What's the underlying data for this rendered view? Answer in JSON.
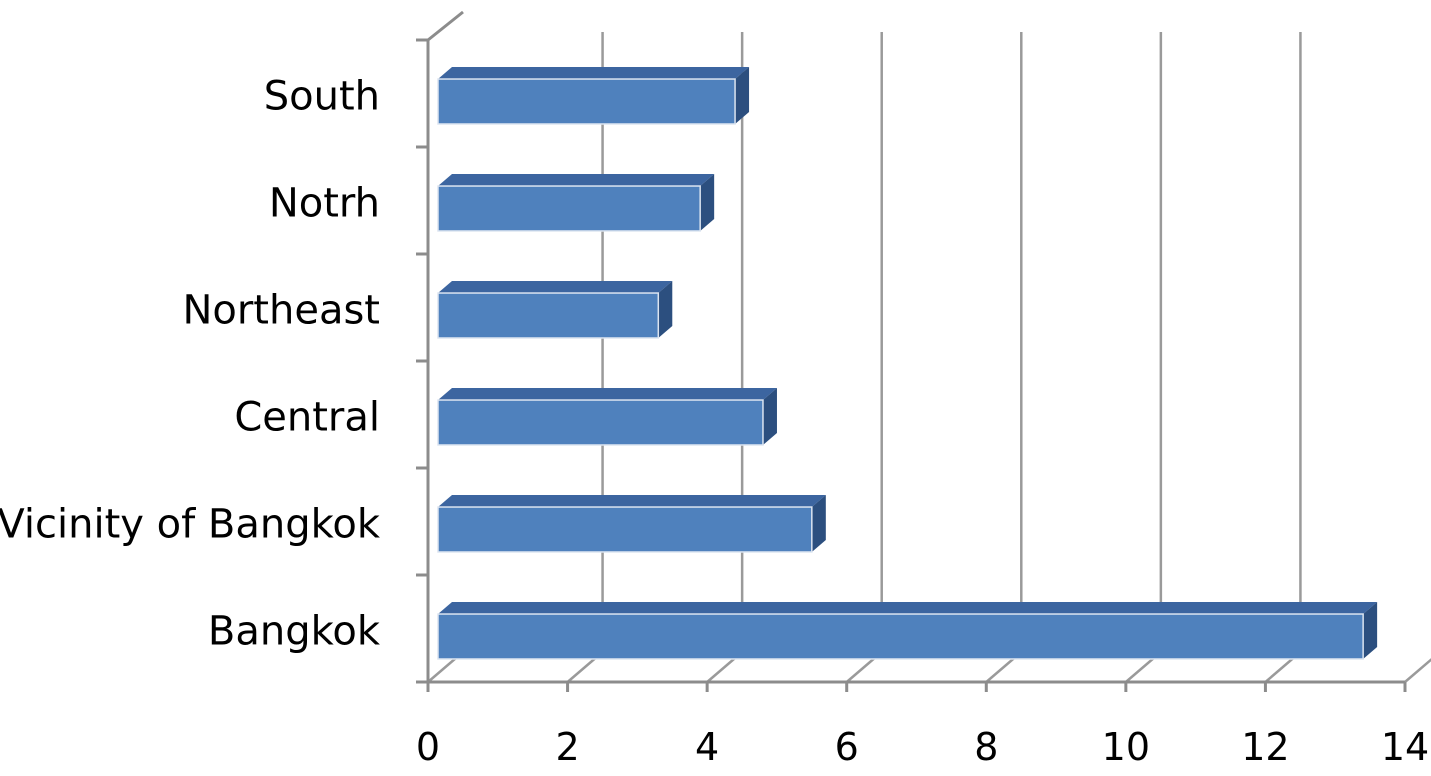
{
  "chart_data": {
    "type": "bar",
    "orientation": "horizontal",
    "style": "3d-clustered",
    "categories": [
      "South",
      "Notrh ",
      "Northeast",
      "Central",
      "Vicinity of Bangkok",
      "Bangkok"
    ],
    "values": [
      4.4,
      3.9,
      3.3,
      4.8,
      5.5,
      13.4
    ],
    "xlim": [
      0,
      14
    ],
    "xticks": [
      "0",
      "2",
      "4",
      "6",
      "8",
      "10",
      "12",
      "14"
    ],
    "grid": "vertical",
    "legend": "none",
    "title": "",
    "xlabel": "",
    "ylabel": "",
    "colors": {
      "bar_front": "#4f81bd",
      "bar_top": "#3c65a0",
      "bar_side": "#2c4f7f",
      "bar_edge": "#dbe4f0",
      "grid": "#9a9a9a",
      "axis": "#8c8c8c"
    }
  }
}
